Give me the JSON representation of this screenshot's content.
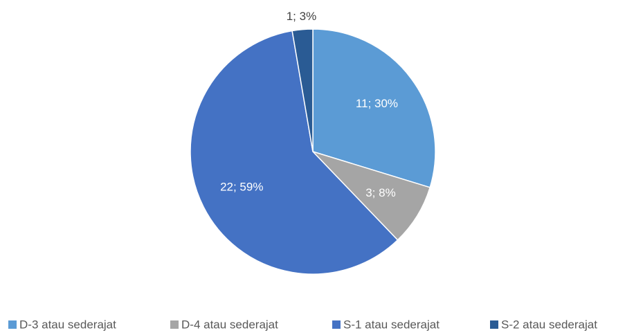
{
  "chart_data": {
    "type": "pie",
    "categories": [
      "D-3 atau sederajat",
      "D-4 atau sederajat",
      "S-1 atau sederajat",
      "S-2 atau sederajat"
    ],
    "values": [
      11,
      3,
      22,
      1
    ],
    "value_labels": [
      "11; 30%",
      "3; 8%",
      "22; 59%",
      "1; 3%"
    ],
    "colors": [
      "#5b9bd5",
      "#a5a5a5",
      "#4472c4",
      "#2a5b94"
    ],
    "legend": "bottom"
  }
}
